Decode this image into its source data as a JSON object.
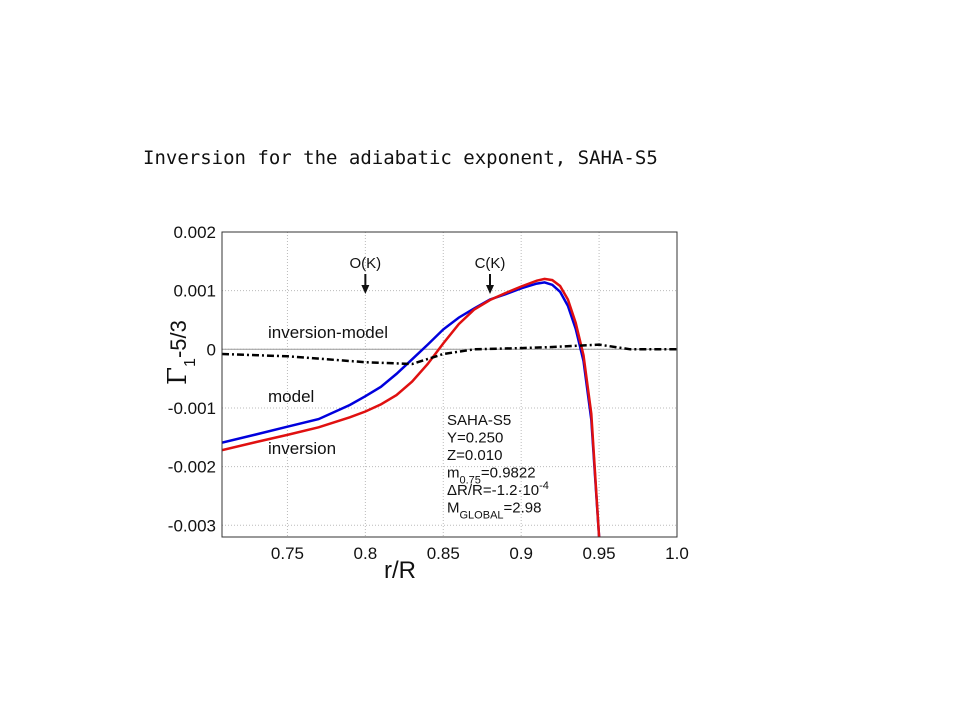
{
  "chart_data": {
    "type": "line",
    "title": "Inversion for the adiabatic exponent, SAHA-S5",
    "xlabel": "r/R",
    "ylabel": [
      {
        "text": "Γ",
        "pos": "base"
      },
      {
        "text": "1",
        "pos": "sub"
      },
      {
        "text": "-5/3",
        "pos": "base"
      }
    ],
    "xlim": [
      0.708,
      1.0
    ],
    "ylim": [
      -0.0032,
      0.002
    ],
    "xticks": [
      0.75,
      0.8,
      0.85,
      0.9,
      0.95,
      {
        "value": 1.0,
        "label": "1.0"
      }
    ],
    "yticks": [
      0.002,
      0.001,
      0,
      -0.001,
      -0.002,
      -0.003
    ],
    "grid": true,
    "series": [
      {
        "name": "model",
        "color": "#0000dd",
        "style": "solid",
        "x": [
          0.708,
          0.73,
          0.75,
          0.77,
          0.79,
          0.8,
          0.81,
          0.82,
          0.83,
          0.84,
          0.85,
          0.86,
          0.87,
          0.88,
          0.89,
          0.9,
          0.91,
          0.915,
          0.92,
          0.925,
          0.93,
          0.935,
          0.94,
          0.945,
          0.95
        ],
        "values": [
          -0.00159,
          -0.00145,
          -0.00132,
          -0.00119,
          -0.00095,
          -0.0008,
          -0.00064,
          -0.00042,
          -0.00017,
          8e-05,
          0.00034,
          0.00054,
          0.0007,
          0.00085,
          0.00094,
          0.00104,
          0.00112,
          0.00114,
          0.0011,
          0.00098,
          0.00074,
          0.00035,
          -0.0002,
          -0.0012,
          -0.0032
        ]
      },
      {
        "name": "inversion",
        "color": "#e01010",
        "style": "solid",
        "x": [
          0.708,
          0.73,
          0.75,
          0.77,
          0.79,
          0.8,
          0.81,
          0.82,
          0.83,
          0.84,
          0.85,
          0.86,
          0.87,
          0.88,
          0.89,
          0.9,
          0.91,
          0.915,
          0.92,
          0.925,
          0.93,
          0.935,
          0.94,
          0.945,
          0.95
        ],
        "values": [
          -0.00172,
          -0.00158,
          -0.00146,
          -0.00133,
          -0.00116,
          -0.00106,
          -0.00094,
          -0.00078,
          -0.00055,
          -0.00025,
          0.0001,
          0.00043,
          0.00068,
          0.00084,
          0.00096,
          0.00107,
          0.00117,
          0.0012,
          0.00118,
          0.00108,
          0.00085,
          0.00045,
          -0.0001,
          -0.0011,
          -0.0032
        ]
      },
      {
        "name": "inversion-model",
        "color": "#000000",
        "style": "dashdot",
        "x": [
          0.708,
          0.75,
          0.8,
          0.83,
          0.85,
          0.87,
          0.9,
          0.92,
          0.95,
          0.97,
          1.0
        ],
        "values": [
          -8e-05,
          -0.00012,
          -0.00022,
          -0.00025,
          -8e-05,
          0,
          2e-05,
          4e-05,
          8e-05,
          0,
          0
        ]
      }
    ],
    "annotations": [
      {
        "text": "O(K)",
        "x": 0.8
      },
      {
        "text": "C(K)",
        "x": 0.88
      }
    ],
    "info_box": [
      [
        {
          "text": "SAHA-S5",
          "pos": "base"
        }
      ],
      [
        {
          "text": "Y=0.250",
          "pos": "base"
        }
      ],
      [
        {
          "text": "Z=0.010",
          "pos": "base"
        }
      ],
      [
        {
          "text": "m",
          "pos": "base"
        },
        {
          "text": "0.75",
          "pos": "sub"
        },
        {
          "text": "=0.9822",
          "pos": "base"
        }
      ],
      [
        {
          "text": "ΔR/R=-1.2·10",
          "pos": "base"
        },
        {
          "text": "-4",
          "pos": "sup"
        }
      ],
      [
        {
          "text": "M",
          "pos": "base"
        },
        {
          "text": "GLOBAL",
          "pos": "sub"
        },
        {
          "text": "=2.98",
          "pos": "base"
        }
      ]
    ]
  }
}
